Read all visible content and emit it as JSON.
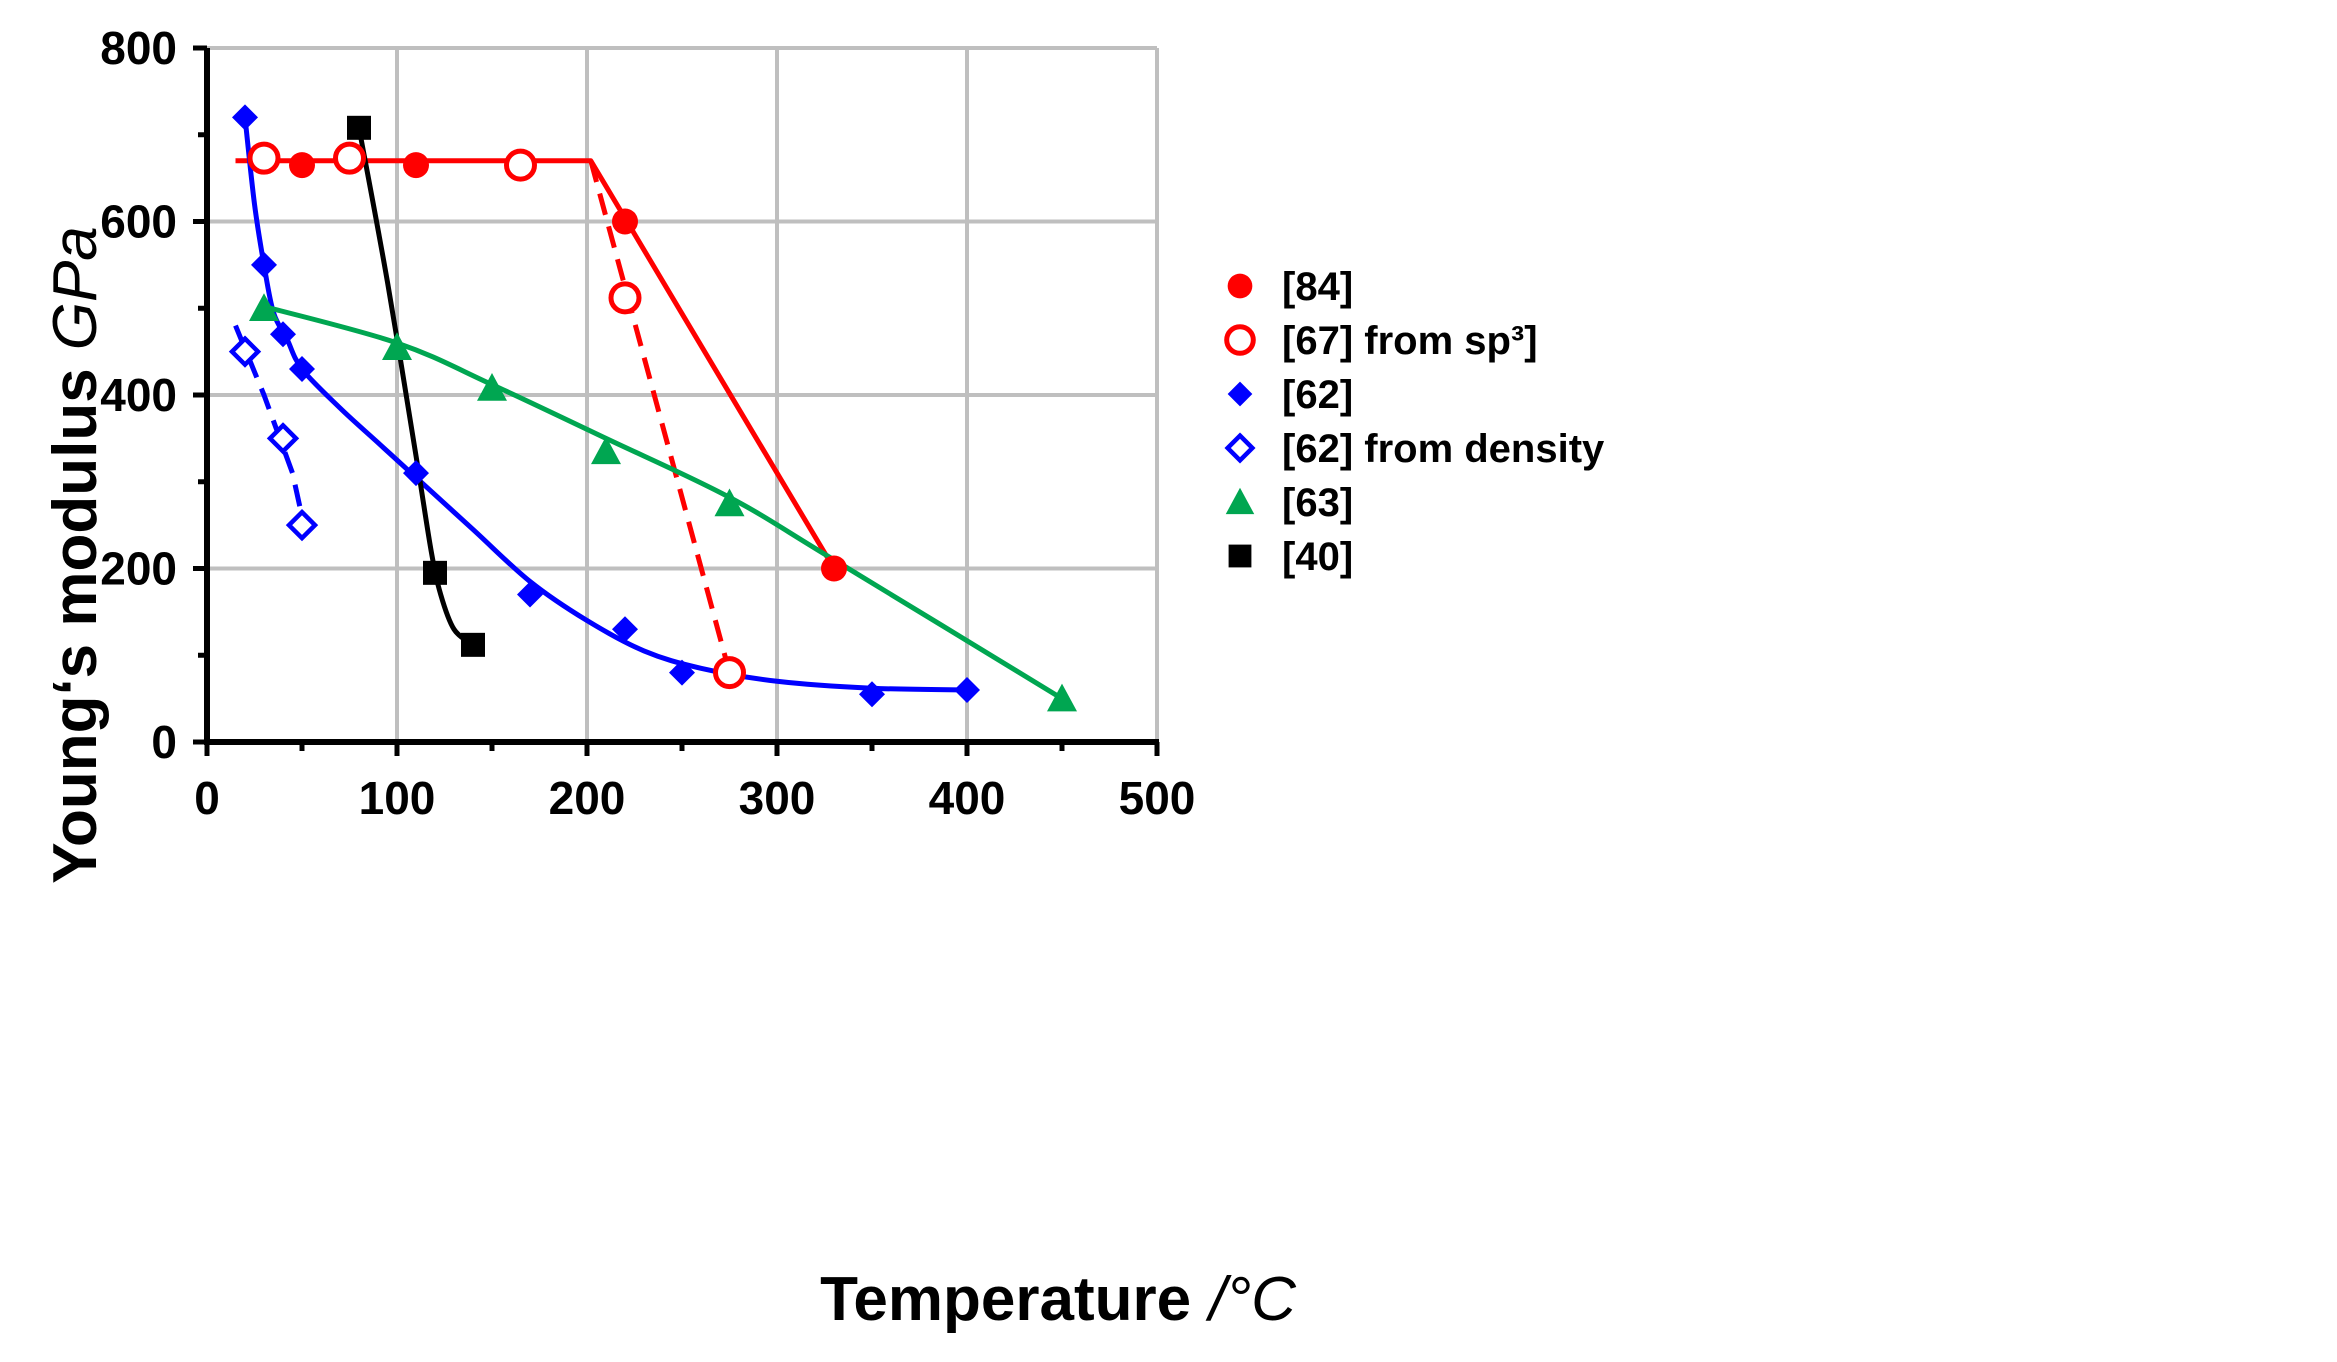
{
  "chart_data": {
    "type": "scatter",
    "title": "",
    "xlabel": "Temperature",
    "xunit": "/°C",
    "ylabel": "Young‘s modulus",
    "yunit": "GPa",
    "xlim": [
      0,
      500
    ],
    "ylim": [
      0,
      800
    ],
    "xticks": [
      0,
      100,
      200,
      300,
      400,
      500
    ],
    "yticks": [
      0,
      200,
      400,
      600,
      800
    ],
    "grid": true,
    "legend_position": "right",
    "series": [
      {
        "name": "[84]",
        "color": "#ff0000",
        "marker": "circle-filled",
        "points": [
          [
            30,
            670
          ],
          [
            50,
            665
          ],
          [
            110,
            665
          ],
          [
            220,
            600
          ],
          [
            330,
            200
          ]
        ],
        "fit_line": [
          [
            15,
            670
          ],
          [
            202,
            670
          ],
          [
            330,
            200
          ]
        ],
        "fit_style": "solid"
      },
      {
        "name": "[67] from sp³]",
        "color": "#ff0000",
        "marker": "circle-open",
        "points": [
          [
            30,
            673
          ],
          [
            75,
            673
          ],
          [
            165,
            665
          ],
          [
            220,
            512
          ],
          [
            275,
            80
          ]
        ],
        "fit_line": [
          [
            202,
            670
          ],
          [
            275,
            80
          ]
        ],
        "fit_style": "dashed"
      },
      {
        "name": "[62]",
        "color": "#0000ff",
        "marker": "diamond-filled",
        "points": [
          [
            20,
            720
          ],
          [
            30,
            550
          ],
          [
            40,
            470
          ],
          [
            50,
            430
          ],
          [
            110,
            310
          ],
          [
            170,
            170
          ],
          [
            220,
            130
          ],
          [
            250,
            80
          ],
          [
            350,
            55
          ],
          [
            400,
            60
          ]
        ],
        "fit_line": [
          [
            20,
            720
          ],
          [
            25,
            620
          ],
          [
            30,
            550
          ],
          [
            35,
            495
          ],
          [
            42,
            465
          ],
          [
            50,
            430
          ],
          [
            70,
            385
          ],
          [
            90,
            345
          ],
          [
            110,
            305
          ],
          [
            140,
            245
          ],
          [
            170,
            185
          ],
          [
            200,
            140
          ],
          [
            230,
            105
          ],
          [
            260,
            85
          ],
          [
            300,
            70
          ],
          [
            350,
            62
          ],
          [
            400,
            60
          ]
        ],
        "fit_style": "smooth"
      },
      {
        "name": "[62] from density",
        "color": "#0000ff",
        "marker": "diamond-open",
        "points": [
          [
            20,
            450
          ],
          [
            40,
            350
          ],
          [
            50,
            250
          ]
        ],
        "fit_line": [
          [
            15,
            480
          ],
          [
            30,
            400
          ],
          [
            45,
            310
          ],
          [
            52,
            240
          ]
        ],
        "fit_style": "dashed"
      },
      {
        "name": "[63]",
        "color": "#00a651",
        "marker": "triangle-filled",
        "points": [
          [
            30,
            500
          ],
          [
            100,
            455
          ],
          [
            150,
            408
          ],
          [
            210,
            335
          ],
          [
            275,
            275
          ],
          [
            450,
            50
          ]
        ],
        "fit_line": [
          [
            30,
            502
          ],
          [
            100,
            460
          ],
          [
            150,
            412
          ],
          [
            210,
            350
          ],
          [
            275,
            282
          ],
          [
            330,
            210
          ],
          [
            450,
            50
          ]
        ],
        "fit_style": "smooth"
      },
      {
        "name": "[40]",
        "color": "#000000",
        "marker": "square-filled",
        "points": [
          [
            80,
            708
          ],
          [
            120,
            195
          ],
          [
            140,
            112
          ]
        ],
        "fit_line": [
          [
            80,
            708
          ],
          [
            95,
            530
          ],
          [
            110,
            330
          ],
          [
            118,
            220
          ],
          [
            123,
            170
          ],
          [
            130,
            130
          ],
          [
            140,
            112
          ]
        ],
        "fit_style": "smooth"
      }
    ]
  }
}
